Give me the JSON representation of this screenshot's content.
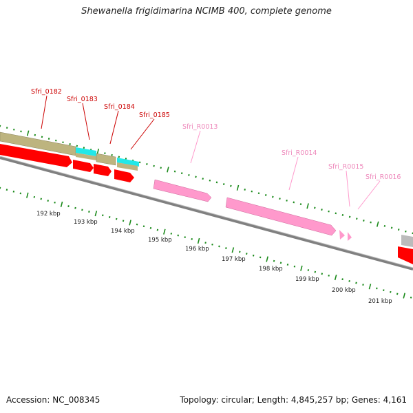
{
  "header": {
    "title": "Shewanella frigidimarina NCIMB 400, complete genome"
  },
  "footer": {
    "accession": "Accession: NC_008345",
    "topology": "Topology: circular; Length: 4,845,257 bp; Genes: 4,161"
  },
  "colors": {
    "cds_label": "#cc0000",
    "rna_label": "#ee88bb",
    "cds_fwd": "#ff0000",
    "rna_feature": "#ff99cc",
    "cog_khaki": "#bdb47f",
    "cog_cyan": "#22e8e8",
    "cog_gray": "#bbbbbb",
    "backbone": "#808080",
    "ticks": "#1a8a1a"
  },
  "genes": [
    {
      "label": "Sfri_0182",
      "type": "CDS"
    },
    {
      "label": "Sfri_0183",
      "type": "CDS"
    },
    {
      "label": "Sfri_0184",
      "type": "CDS"
    },
    {
      "label": "Sfri_0185",
      "type": "CDS"
    },
    {
      "label": "Sfri_R0013",
      "type": "RNA"
    },
    {
      "label": "Sfri_R0014",
      "type": "RNA"
    },
    {
      "label": "Sfri_R0015",
      "type": "RNA"
    },
    {
      "label": "Sfri_R0016",
      "type": "RNA"
    }
  ],
  "scale": {
    "labels": [
      "192 kbp",
      "193 kbp",
      "194 kbp",
      "195 kbp",
      "196 kbp",
      "197 kbp",
      "198 kbp",
      "199 kbp",
      "200 kbp",
      "201 kbp"
    ]
  }
}
